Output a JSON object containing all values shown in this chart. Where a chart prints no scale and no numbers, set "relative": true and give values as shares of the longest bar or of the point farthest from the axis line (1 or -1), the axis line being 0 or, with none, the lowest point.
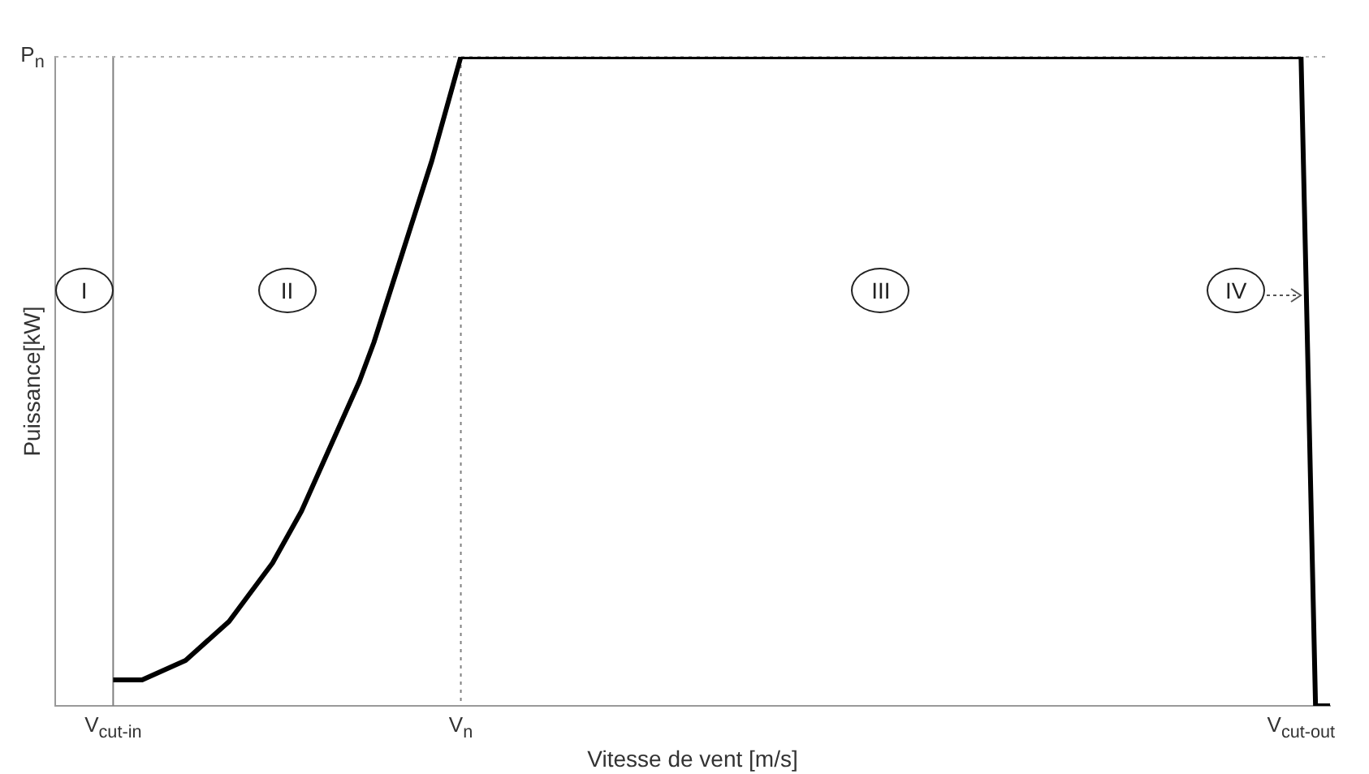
{
  "chart_data": {
    "type": "line",
    "relative": true,
    "xlabel": "Vitesse de vent [m/s]",
    "ylabel": "Puissance[kW]",
    "categories": [
      null,
      null,
      null,
      null,
      "V$_{cut-in}$",
      null,
      null,
      null,
      null,
      null,
      null,
      null,
      null,
      null,
      null,
      null,
      null,
      null,
      null,
      null,
      null,
      null,
      null,
      null,
      null,
      null,
      null,
      null,
      "V$_{n}$",
      null,
      null,
      null,
      null,
      null,
      null,
      null,
      null,
      null,
      null,
      null,
      null,
      null,
      null,
      null,
      null,
      null,
      null,
      null,
      null,
      null,
      null,
      null,
      null,
      null,
      null,
      null,
      null,
      null,
      null,
      null,
      null,
      null,
      null,
      null,
      null,
      null,
      null,
      null,
      null,
      null,
      null,
      null,
      null,
      null,
      null,
      null,
      null,
      null,
      null,
      null,
      null,
      null,
      null,
      null,
      null,
      null,
      "V$_{cut-out}$",
      null,
      null
    ],
    "series": [
      {
        "color": "#000000",
        "values": [
          null,
          null,
          null,
          null,
          0.04,
          0.04,
          0.04,
          0.05,
          0.06,
          0.07,
          0.09,
          0.11,
          0.13,
          0.16,
          0.19,
          0.22,
          0.26,
          0.3,
          0.35,
          0.4,
          0.45,
          0.5,
          0.56,
          0.63,
          0.7,
          0.77,
          0.84,
          0.92,
          1,
          1,
          1,
          1,
          1,
          1,
          1,
          1,
          1,
          1,
          1,
          1,
          1,
          1,
          1,
          1,
          1,
          1,
          1,
          1,
          1,
          1,
          1,
          1,
          1,
          1,
          1,
          1,
          1,
          1,
          1,
          1,
          1,
          1,
          1,
          1,
          1,
          1,
          1,
          1,
          1,
          1,
          1,
          1,
          1,
          1,
          1,
          1,
          1,
          1,
          1,
          1,
          1,
          1,
          1,
          1,
          1,
          1,
          1,
          0,
          0
        ]
      }
    ],
    "ref_lines": [
      {
        "axis": "x",
        "value": "V$_{cut-in}$",
        "color": "#808080",
        "line_style": "solid"
      },
      {
        "axis": "x",
        "value": "V$_{n}$",
        "color": "#808080",
        "line_style": "dotted"
      },
      {
        "axis": "y",
        "value": 1,
        "label": "P$_{n}$",
        "color": "#b0b0b0",
        "line_style": "dotted"
      }
    ],
    "annotations": [
      "I",
      "II",
      "III",
      "IV"
    ],
    "legend": false,
    "grid": false,
    "marker": "none",
    "line_style": "solid"
  }
}
